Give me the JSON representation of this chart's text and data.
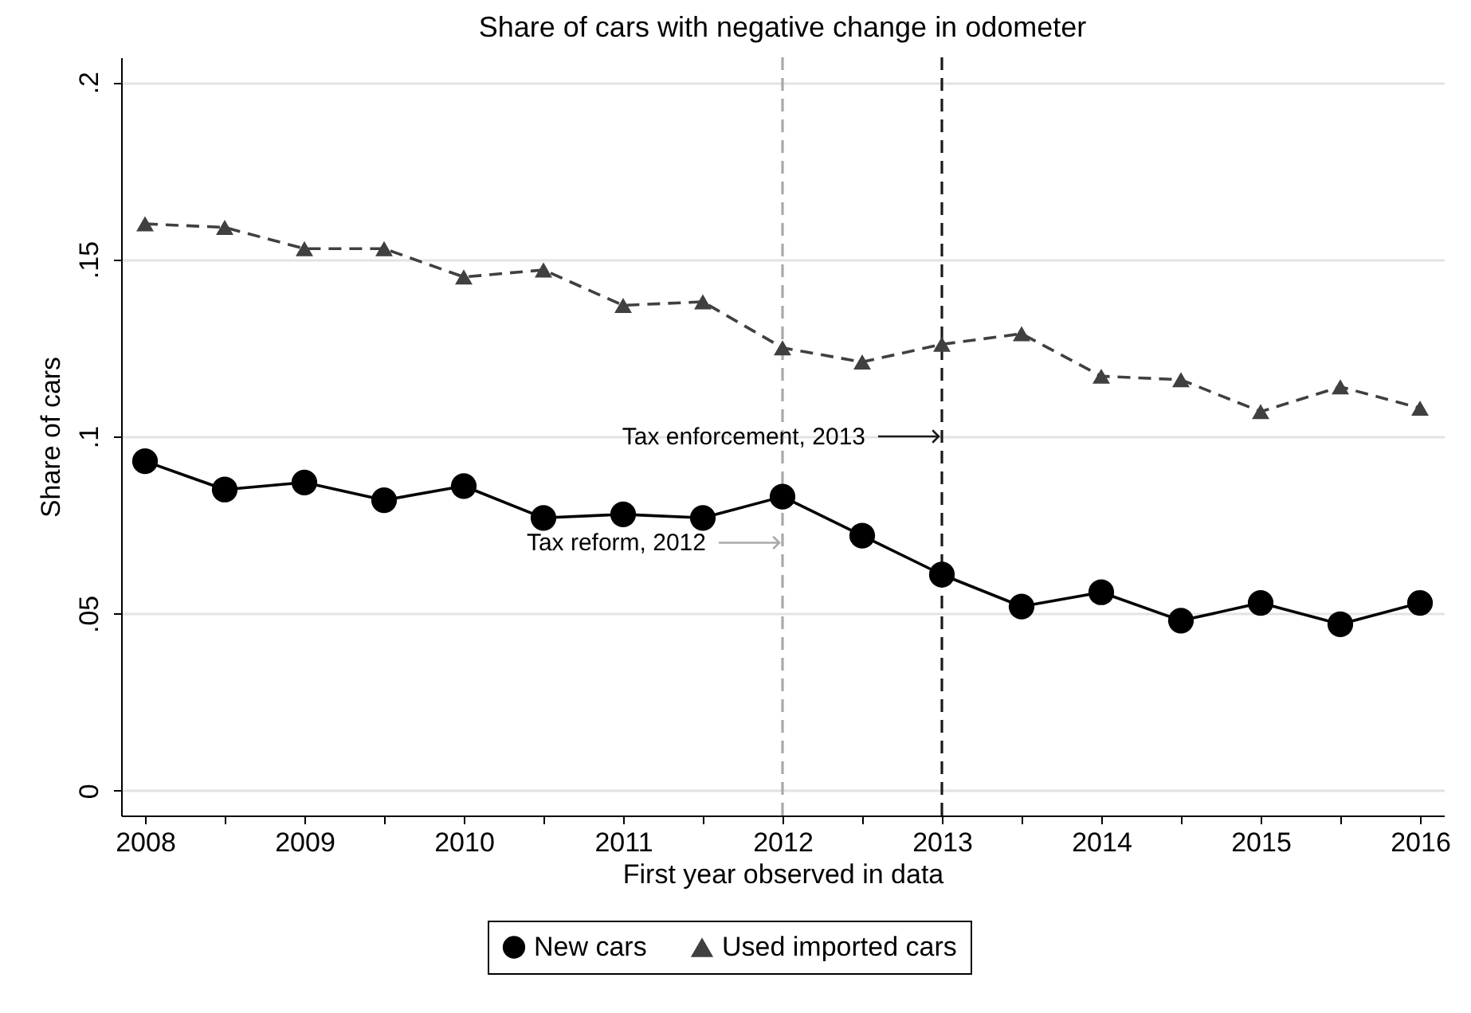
{
  "chart_data": {
    "type": "line",
    "title": "Share of cars with negative change in odometer",
    "xlabel": "First year observed in data",
    "ylabel": "Share of cars",
    "x": [
      2008,
      2008.5,
      2009,
      2009.5,
      2010,
      2010.5,
      2011,
      2011.5,
      2012,
      2012.5,
      2013,
      2013.5,
      2014,
      2014.5,
      2015,
      2015.5,
      2016
    ],
    "series": [
      {
        "name": "New cars",
        "color": "#000000",
        "marker": "circle",
        "line_style": "solid",
        "values": [
          0.093,
          0.085,
          0.087,
          0.082,
          0.086,
          0.077,
          0.078,
          0.077,
          0.083,
          0.072,
          0.061,
          0.052,
          0.056,
          0.048,
          0.053,
          0.047,
          0.053
        ]
      },
      {
        "name": "Used imported cars",
        "color": "#404040",
        "marker": "triangle",
        "line_style": "dashed",
        "values": [
          0.16,
          0.159,
          0.153,
          0.153,
          0.145,
          0.147,
          0.137,
          0.138,
          0.125,
          0.121,
          0.126,
          0.129,
          0.117,
          0.116,
          0.107,
          0.114,
          0.108
        ]
      }
    ],
    "xlim": [
      2007.85,
      2016.15
    ],
    "xticks": [
      2008,
      {
        "value": 2008.5,
        "label": null
      },
      2009,
      {
        "value": 2009.5,
        "label": null
      },
      2010,
      {
        "value": 2010.5,
        "label": null
      },
      2011,
      {
        "value": 2011.5,
        "label": null
      },
      2012,
      {
        "value": 2012.5,
        "label": null
      },
      2013,
      {
        "value": 2013.5,
        "label": null
      },
      2014,
      {
        "value": 2014.5,
        "label": null
      },
      2015,
      {
        "value": 2015.5,
        "label": null
      },
      2016
    ],
    "ylim": [
      -0.007,
      0.207
    ],
    "yticks": [
      0,
      {
        "value": 0.05,
        "label": ".05"
      },
      {
        "value": 0.1,
        "label": ".1"
      },
      {
        "value": 0.15,
        "label": ".15"
      },
      {
        "value": 0.2,
        "label": ".2"
      }
    ],
    "grid": "y",
    "legend": "bottom",
    "ref_lines": [
      {
        "axis": "x",
        "value": 2012,
        "color": "#a8a8a8",
        "line_style": "dashed"
      },
      {
        "axis": "x",
        "value": 2013,
        "color": "#1a1a1a",
        "line_style": "dashed"
      }
    ],
    "annotations": [
      {
        "text": "Tax reform, 2012",
        "x": 2012,
        "y": 0.07
      },
      {
        "text": "Tax enforcement, 2013",
        "x": 2013,
        "y": 0.1
      }
    ]
  }
}
